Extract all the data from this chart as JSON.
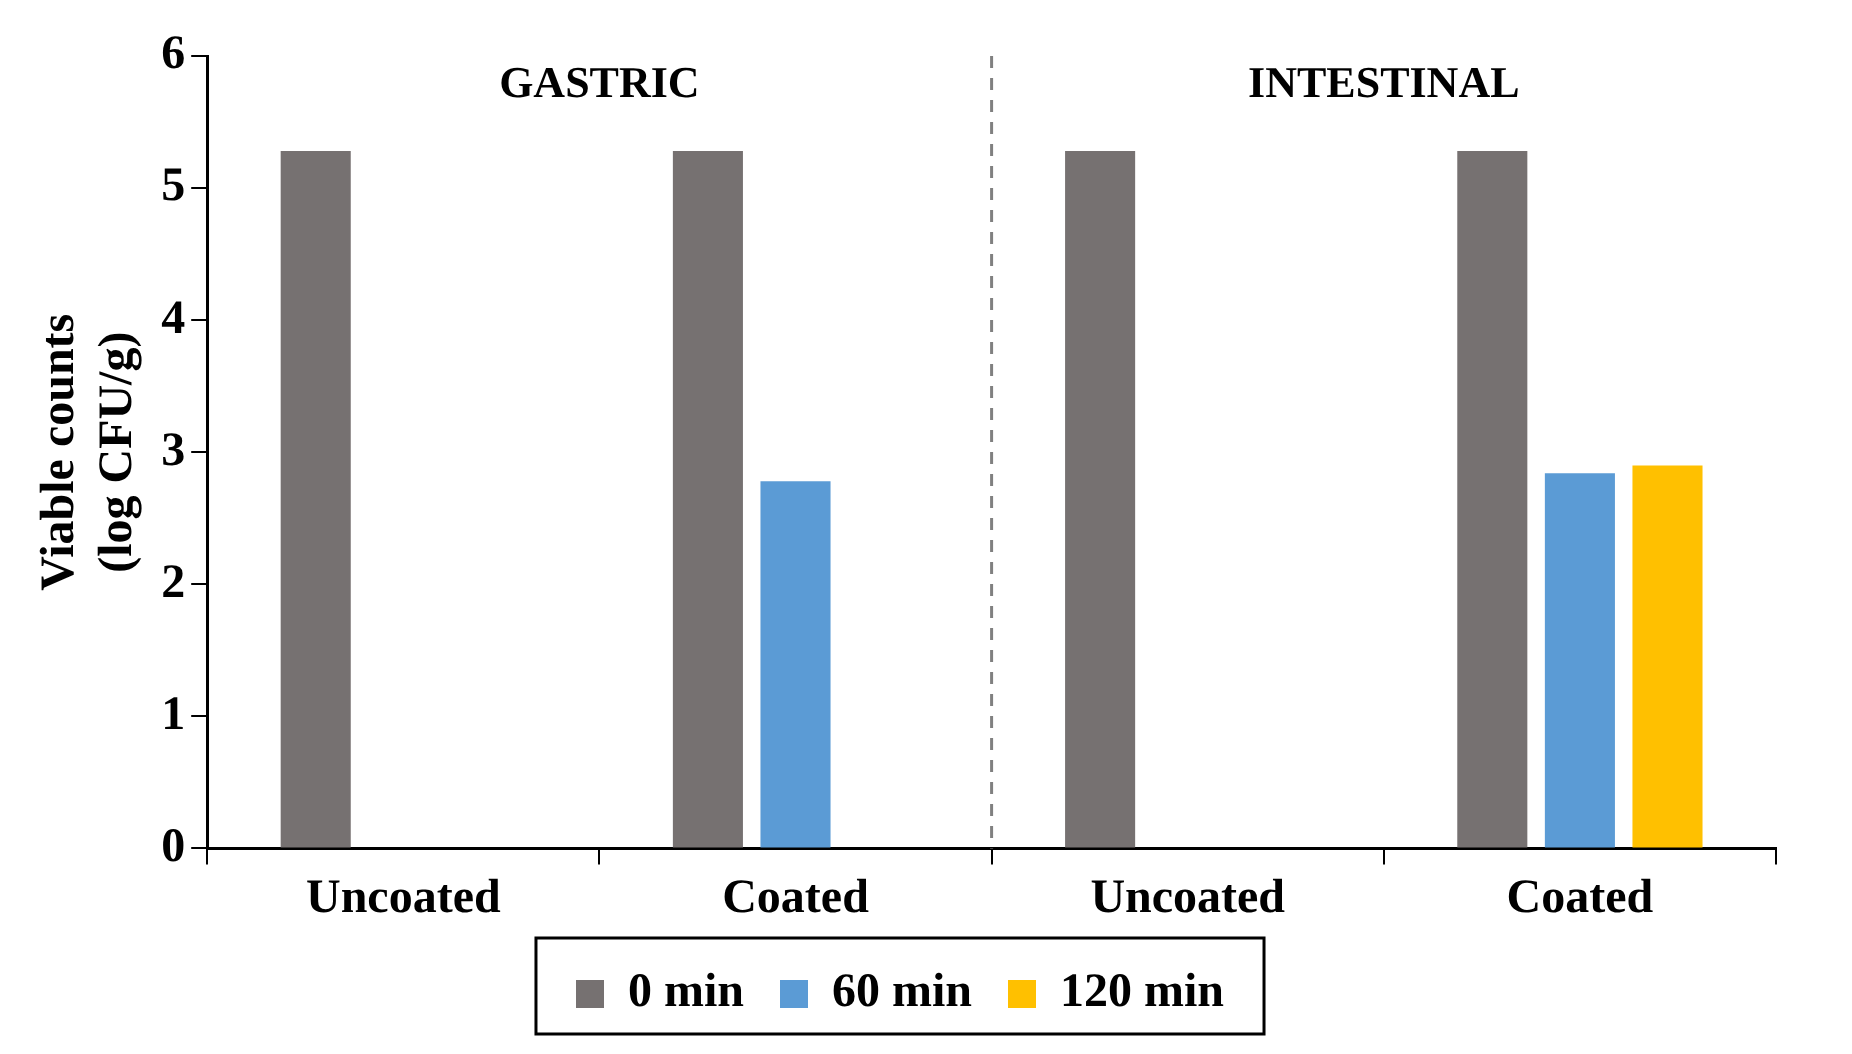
{
  "chart_data": {
    "type": "bar",
    "ylabel": "Viable counts\n(log CFU/g)",
    "categories": [
      "Uncoated",
      "Coated",
      "Uncoated",
      "Coated"
    ],
    "series": [
      {
        "name": "0 min",
        "color": "#767171",
        "values": [
          5.28,
          5.28,
          5.28,
          5.28
        ]
      },
      {
        "name": "60 min",
        "color": "#5b9bd5",
        "values": [
          null,
          2.78,
          null,
          2.84
        ]
      },
      {
        "name": "120 min",
        "color": "#ffc000",
        "values": [
          null,
          null,
          null,
          2.9
        ]
      }
    ],
    "ylim": [
      0,
      6
    ],
    "yticks": [
      0,
      1,
      2,
      3,
      4,
      5,
      6
    ],
    "grid": false,
    "legend": "bottom",
    "annotations": [
      "GASTRIC",
      "INTESTINAL"
    ]
  }
}
